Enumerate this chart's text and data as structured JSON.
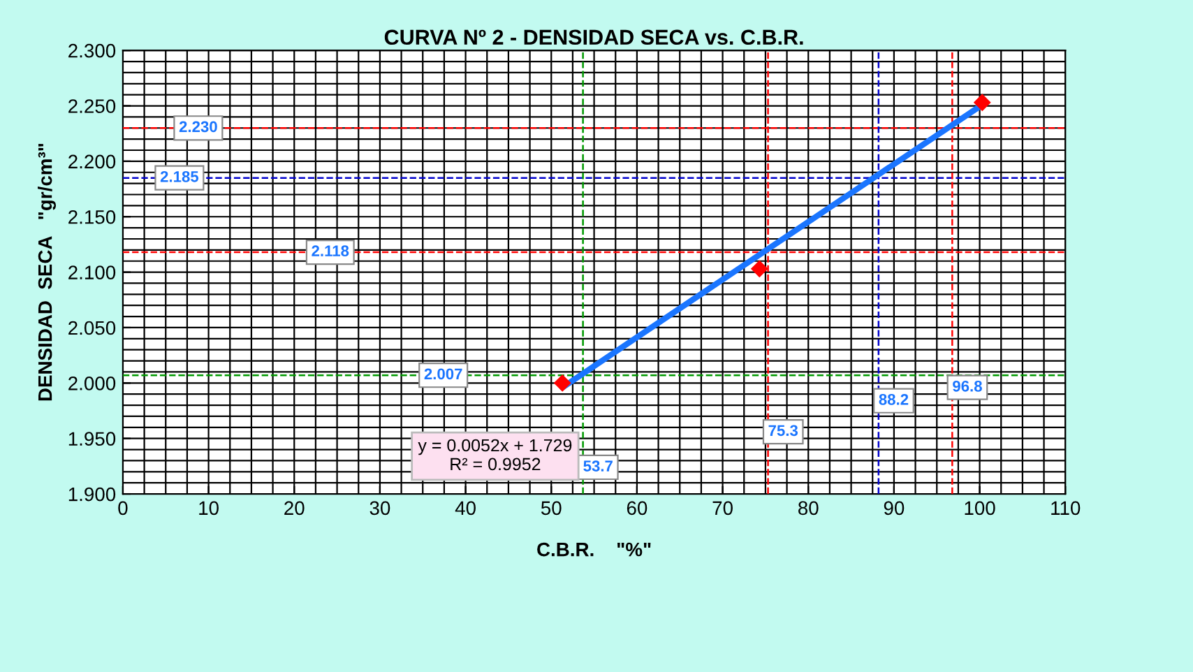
{
  "chart_data": {
    "type": "scatter",
    "title": "CURVA Nº 2 - DENSIDAD SECA vs. C.B.R.",
    "xlabel": "C.B.R.    \"%\"",
    "ylabel": "DENSIDAD  SECA   \"gr/cm³\"",
    "series": [
      {
        "color": "#ff0000",
        "marker": "diamond",
        "x": [
          51.3,
          74.3,
          100.3
        ],
        "values": [
          2.0,
          2.103,
          2.253
        ]
      },
      {
        "type": "line",
        "color": "#1a75ff",
        "marker": "none",
        "x": [
          51.3,
          100.3
        ],
        "values": [
          1.996,
          2.251
        ]
      }
    ],
    "xlim": [
      0,
      110
    ],
    "xticks": [
      0,
      10,
      20,
      30,
      40,
      50,
      60,
      70,
      80,
      90,
      100,
      110
    ],
    "ylim": [
      1.9,
      2.3
    ],
    "yticks": [
      {
        "value": 1.9,
        "label": "1.900"
      },
      {
        "value": 1.95,
        "label": "1.950"
      },
      {
        "value": 2.0,
        "label": "2.000"
      },
      {
        "value": 2.05,
        "label": "2.050"
      },
      {
        "value": 2.1,
        "label": "2.100"
      },
      {
        "value": 2.15,
        "label": "2.150"
      },
      {
        "value": 2.2,
        "label": "2.200"
      },
      {
        "value": 2.25,
        "label": "2.250"
      },
      {
        "value": 2.3,
        "label": "2.300"
      }
    ],
    "grid": true,
    "ref_lines": [
      {
        "axis": "y",
        "value": 2.23,
        "label": "2.230",
        "color": "#ff0000",
        "line_style": "dashed"
      },
      {
        "axis": "y",
        "value": 2.185,
        "label": "2.185",
        "color": "#0000cc",
        "line_style": "dashed"
      },
      {
        "axis": "y",
        "value": 2.118,
        "label": "2.118",
        "color": "#ff0000",
        "line_style": "dashed"
      },
      {
        "axis": "y",
        "value": 2.007,
        "label": "2.007",
        "color": "#009900",
        "line_style": "dashed"
      },
      {
        "axis": "x",
        "value": 96.8,
        "label": "96.8",
        "color": "#ff0000",
        "line_style": "dashed"
      },
      {
        "axis": "x",
        "value": 88.2,
        "label": "88.2",
        "color": "#0000cc",
        "line_style": "dashed"
      },
      {
        "axis": "x",
        "value": 75.3,
        "label": "75.3",
        "color": "#ff0000",
        "line_style": "dashed"
      },
      {
        "axis": "x",
        "value": 53.7,
        "label": "53.7",
        "color": "#009900",
        "line_style": "dashed"
      }
    ],
    "annotations": [
      "y = 0.0052x + 1.729\nR² = 0.9952"
    ]
  }
}
